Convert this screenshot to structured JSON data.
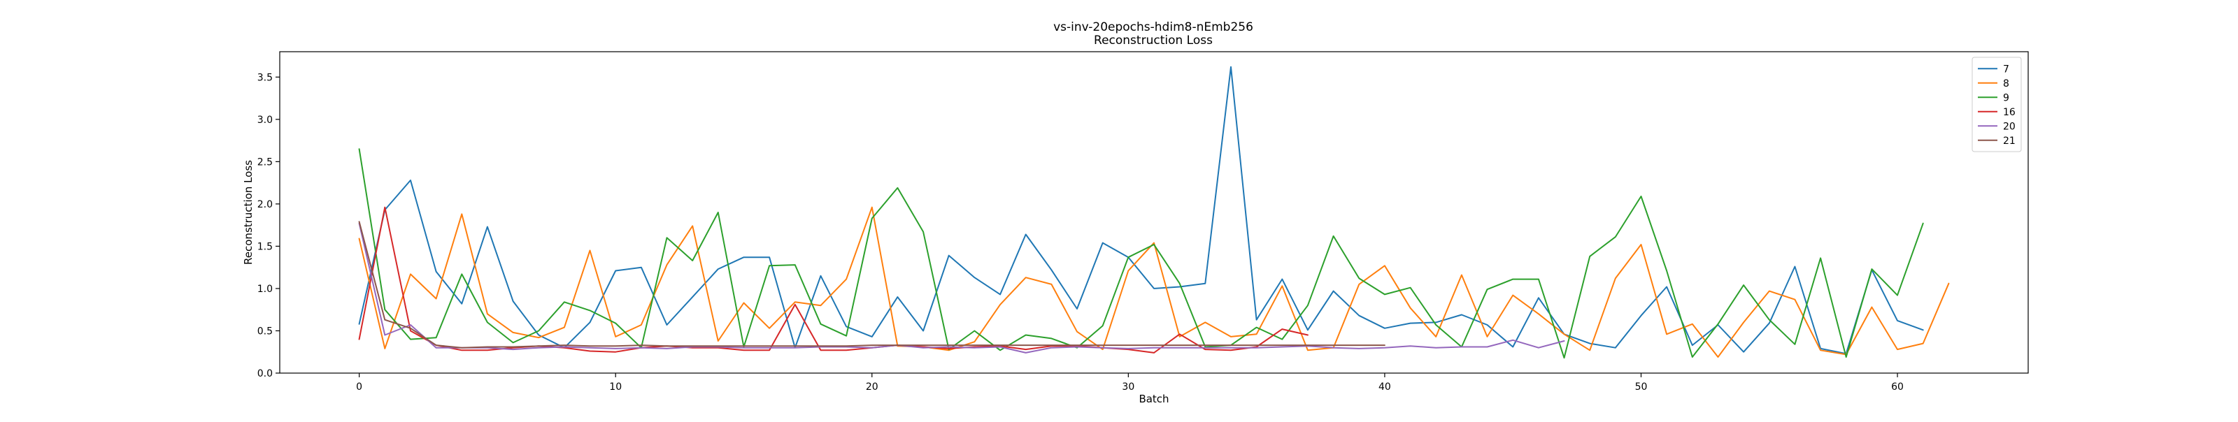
{
  "chart_data": {
    "type": "line",
    "title": "vs-inv-20epochs-hdim8-nEmb256",
    "subtitle": "Reconstruction Loss",
    "xlabel": "Batch",
    "ylabel": "Reconstruction Loss",
    "xlim": [
      -3.1,
      65.1
    ],
    "ylim": [
      0,
      3.8
    ],
    "xticks": [
      0,
      10,
      20,
      30,
      40,
      50,
      60
    ],
    "yticks": [
      0.0,
      0.5,
      1.0,
      1.5,
      2.0,
      2.5,
      3.0,
      3.5
    ],
    "ytick_labels": [
      "0.0",
      "0.5",
      "1.0",
      "1.5",
      "2.0",
      "2.5",
      "3.0",
      "3.5"
    ],
    "grid": false,
    "legend_position": "top-right",
    "series": [
      {
        "name": "7",
        "color": "#1f77b4",
        "values": [
          0.58,
          1.93,
          2.28,
          1.2,
          0.82,
          1.73,
          0.85,
          0.45,
          0.3,
          0.6,
          1.21,
          1.25,
          0.57,
          0.9,
          1.23,
          1.37,
          1.37,
          0.3,
          1.15,
          0.55,
          0.43,
          0.9,
          0.5,
          1.39,
          1.13,
          0.93,
          1.64,
          1.22,
          0.76,
          1.54,
          1.37,
          1.0,
          1.02,
          1.06,
          3.62,
          0.63,
          1.11,
          0.51,
          0.97,
          0.68,
          0.53,
          0.59,
          0.6,
          0.69,
          0.57,
          0.31,
          0.89,
          0.46,
          0.35,
          0.3,
          0.68,
          1.02,
          0.33,
          0.57,
          0.25,
          0.59,
          1.26,
          0.29,
          0.23,
          1.22,
          0.62,
          0.51
        ]
      },
      {
        "name": "8",
        "color": "#ff7f0e",
        "values": [
          1.59,
          0.29,
          1.17,
          0.88,
          1.88,
          0.7,
          0.48,
          0.42,
          0.54,
          1.45,
          0.43,
          0.57,
          1.28,
          1.74,
          0.38,
          0.83,
          0.53,
          0.84,
          0.8,
          1.11,
          1.96,
          0.32,
          0.31,
          0.27,
          0.37,
          0.81,
          1.13,
          1.05,
          0.49,
          0.28,
          1.21,
          1.54,
          0.43,
          0.6,
          0.43,
          0.46,
          1.03,
          0.27,
          0.3,
          1.05,
          1.27,
          0.77,
          0.43,
          1.16,
          0.43,
          0.92,
          0.7,
          0.46,
          0.27,
          1.12,
          1.52,
          0.46,
          0.58,
          0.19,
          0.6,
          0.97,
          0.87,
          0.27,
          0.22,
          0.78,
          0.28,
          0.35,
          1.06
        ]
      },
      {
        "name": "9",
        "color": "#2ca02c",
        "values": [
          2.65,
          0.75,
          0.4,
          0.42,
          1.17,
          0.6,
          0.36,
          0.5,
          0.84,
          0.74,
          0.59,
          0.3,
          1.6,
          1.33,
          1.9,
          0.31,
          1.27,
          1.28,
          0.58,
          0.44,
          1.83,
          2.19,
          1.67,
          0.28,
          0.5,
          0.27,
          0.45,
          0.41,
          0.3,
          0.56,
          1.37,
          1.52,
          1.06,
          0.31,
          0.33,
          0.54,
          0.4,
          0.8,
          1.62,
          1.12,
          0.93,
          1.01,
          0.57,
          0.31,
          0.99,
          1.11,
          1.11,
          0.18,
          1.38,
          1.61,
          2.09,
          1.21,
          0.19,
          0.58,
          1.04,
          0.63,
          0.34,
          1.36,
          0.19,
          1.23,
          0.92,
          1.77
        ]
      },
      {
        "name": "16",
        "color": "#d62728",
        "values": [
          0.4,
          1.96,
          0.5,
          0.33,
          0.27,
          0.27,
          0.3,
          0.32,
          0.3,
          0.26,
          0.25,
          0.3,
          0.32,
          0.3,
          0.3,
          0.27,
          0.27,
          0.81,
          0.27,
          0.27,
          0.3,
          0.33,
          0.31,
          0.29,
          0.31,
          0.32,
          0.28,
          0.32,
          0.32,
          0.3,
          0.28,
          0.24,
          0.46,
          0.28,
          0.27,
          0.31,
          0.52,
          0.45
        ]
      },
      {
        "name": "20",
        "color": "#9467bd",
        "values": [
          1.77,
          0.45,
          0.57,
          0.3,
          0.3,
          0.3,
          0.28,
          0.3,
          0.31,
          0.3,
          0.29,
          0.3,
          0.29,
          0.31,
          0.31,
          0.3,
          0.3,
          0.3,
          0.31,
          0.31,
          0.3,
          0.33,
          0.3,
          0.31,
          0.3,
          0.31,
          0.24,
          0.3,
          0.31,
          0.3,
          0.29,
          0.3,
          0.3,
          0.3,
          0.3,
          0.3,
          0.31,
          0.32,
          0.3,
          0.29,
          0.3,
          0.32,
          0.3,
          0.31,
          0.31,
          0.39,
          0.3,
          0.38
        ]
      },
      {
        "name": "21",
        "color": "#8c564b",
        "values": [
          1.79,
          0.63,
          0.53,
          0.33,
          0.3,
          0.31,
          0.31,
          0.32,
          0.33,
          0.32,
          0.32,
          0.33,
          0.32,
          0.32,
          0.32,
          0.32,
          0.32,
          0.32,
          0.32,
          0.32,
          0.33,
          0.33,
          0.33,
          0.33,
          0.33,
          0.33,
          0.33,
          0.33,
          0.33,
          0.33,
          0.33,
          0.33,
          0.33,
          0.33,
          0.33,
          0.33,
          0.33,
          0.33,
          0.33,
          0.33,
          0.33
        ]
      }
    ]
  }
}
